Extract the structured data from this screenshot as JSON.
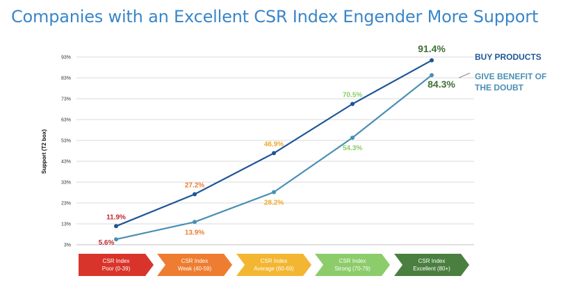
{
  "page": {
    "title": "Companies with an Excellent CSR Index Engender More Support"
  },
  "chart_data": {
    "type": "line",
    "title": "Companies with an Excellent CSR Index Engender More Support",
    "ylabel": "Support (T2 box)",
    "xlabel": "",
    "ylim": [
      3,
      93
    ],
    "yticks": [
      "3%",
      "13%",
      "23%",
      "33%",
      "43%",
      "53%",
      "63%",
      "73%",
      "83%",
      "93%"
    ],
    "grid": true,
    "legend": "right",
    "categories": [
      {
        "line1": "CSR Index",
        "line2": "Poor (0-39)",
        "color": "#d9342b"
      },
      {
        "line1": "CSR Index",
        "line2": "Weak (40-59)",
        "color": "#ee7d31"
      },
      {
        "line1": "CSR Index",
        "line2": "Average (60-69)",
        "color": "#f3b632"
      },
      {
        "line1": "CSR Index",
        "line2": "Strong (70-79)",
        "color": "#8ccc6a"
      },
      {
        "line1": "CSR Index",
        "line2": "Excellent (80+)",
        "color": "#4b7f3f"
      }
    ],
    "series": [
      {
        "name": "BUY PRODUCTS",
        "color": "#1e5596",
        "values": [
          11.9,
          27.2,
          46.9,
          70.5,
          91.4
        ],
        "labels": [
          "11.9%",
          "27.2%",
          "46.9%",
          "70.5%",
          "91.4%"
        ]
      },
      {
        "name": "GIVE BENEFIT OF THE DOUBT",
        "color": "#4a8fb4",
        "values": [
          5.6,
          13.9,
          28.2,
          54.3,
          84.3
        ],
        "labels": [
          "5.6%",
          "13.9%",
          "28.2%",
          "54.3%",
          "84.3%"
        ]
      }
    ],
    "label_colors": [
      "#c0282d",
      "#ee7d31",
      "#f0a92a",
      "#8ccc6a",
      "#3e7034"
    ],
    "legend_labels": {
      "buy_line1": "BUY PRODUCTS",
      "give_line1": "GIVE BENEFIT OF",
      "give_line2": "THE DOUBT"
    }
  }
}
